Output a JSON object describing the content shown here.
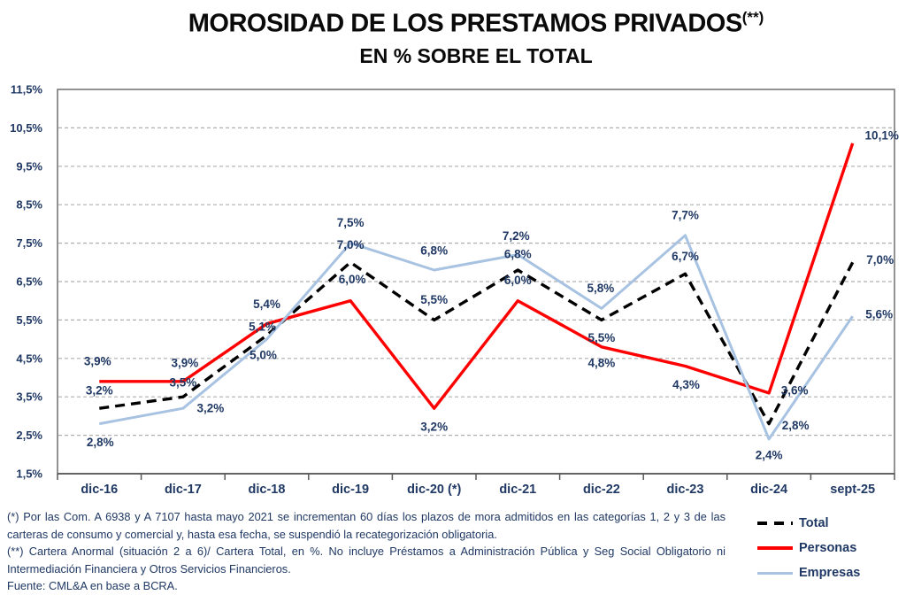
{
  "title": {
    "text": "MOROSIDAD DE LOS PRESTAMOS PRIVADOS",
    "sup": "(**)"
  },
  "subtitle": "EN % SOBRE EL TOTAL",
  "chart_data": {
    "type": "line",
    "title": "MOROSIDAD DE LOS PRESTAMOS PRIVADOS (**)",
    "subtitle": "EN % SOBRE EL TOTAL",
    "categories": [
      "dic-16",
      "dic-17",
      "dic-18",
      "dic-19",
      "dic-20 (*)",
      "dic-21",
      "dic-22",
      "dic-23",
      "dic-24",
      "sept-25"
    ],
    "series": [
      {
        "name": "Total",
        "color": "#000000",
        "line_style": "dashed",
        "values": [
          3.2,
          3.5,
          5.1,
          7.0,
          5.5,
          6.8,
          5.5,
          6.7,
          2.8,
          7.0
        ]
      },
      {
        "name": "Personas",
        "color": "#FE0000",
        "line_style": "solid",
        "values": [
          3.9,
          3.9,
          5.4,
          6.0,
          3.2,
          6.0,
          4.8,
          4.3,
          3.6,
          10.1
        ]
      },
      {
        "name": "Empresas",
        "color": "#A8C2E2",
        "line_style": "solid",
        "values": [
          2.8,
          3.2,
          5.0,
          7.5,
          6.8,
          7.2,
          5.8,
          7.7,
          2.4,
          5.6
        ]
      }
    ],
    "xlabel": "",
    "ylabel": "",
    "ylim": [
      1.5,
      11.5
    ],
    "ytick_step": 1.0,
    "ytick_labels": [
      "1,5%",
      "2,5%",
      "3,5%",
      "4,5%",
      "5,5%",
      "6,5%",
      "7,5%",
      "8,5%",
      "9,5%",
      "10,5%",
      "11,5%"
    ],
    "grid": "horizontal dashed",
    "legend_position": "bottom-right",
    "point_label_format": "comma-decimal-percent"
  },
  "footnotes": {
    "lines": [
      "(*) Por las Com. A 6938 y A 7107 hasta mayo 2021 se incrementan 60 días los plazos de mora admitidos en las categorías 1, 2 y 3 de las",
      "carteras de consumo y comercial y, hasta esa fecha, se suspendió la recategorización obligatoria.",
      "(**) Cartera Anormal (situación 2 a 6)/ Cartera Total, en %. No incluye Préstamos a Administración Pública y Seg Social Obligatorio ni",
      "Intermediación Financiera y Otros Servicios Financieros.",
      "Fuente: CML&A en base a BCRA."
    ]
  },
  "colors": {
    "text_navy": "#1F3864",
    "grid": "#AFAFAF",
    "plot_border": "#6E6E6E",
    "axis": "#595959"
  }
}
